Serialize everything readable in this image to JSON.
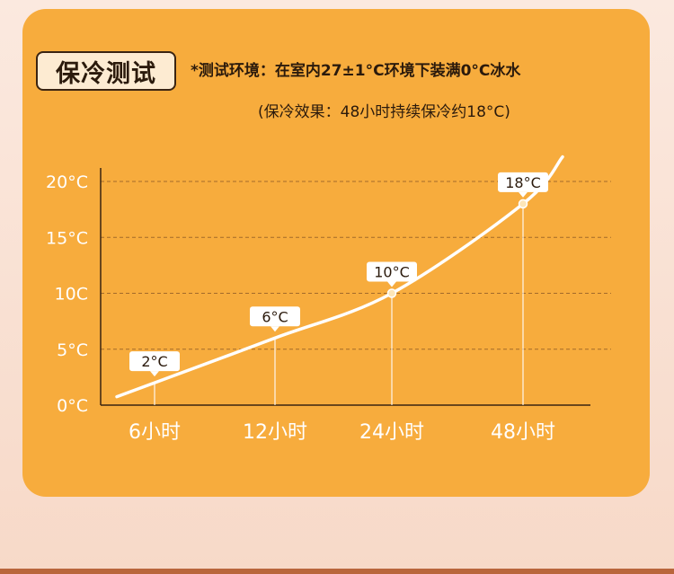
{
  "header": {
    "title": "保冷测试",
    "condition": "*测试环境：在室内27±1°C环境下装满0°C冰水",
    "result": "(保冷效果：48小时持续保冷约18°C)"
  },
  "colors": {
    "card": "#f7ac3d",
    "curve": "#ffffff",
    "grid": "#a36a2a",
    "axis_text": "#ffffff"
  },
  "chart_data": {
    "type": "line",
    "title": "",
    "xlabel": "",
    "ylabel": "",
    "x_tick_labels": [
      "6小时",
      "12小时",
      "24小时",
      "48小时"
    ],
    "y_tick_labels": [
      "0°C",
      "5°C",
      "10C",
      "15°C",
      "20°C"
    ],
    "y_ticks": [
      0,
      5,
      10,
      15,
      20
    ],
    "ylim": [
      0,
      20
    ],
    "grid": "dashed horizontal",
    "series": [
      {
        "points": [
          {
            "x": "6小时",
            "y": 2,
            "label": "2°C"
          },
          {
            "x": "12小时",
            "y": 6,
            "label": "6°C"
          },
          {
            "x": "24小时",
            "y": 10,
            "label": "10°C"
          },
          {
            "x": "48小时",
            "y": 18,
            "label": "18°C"
          }
        ]
      }
    ]
  }
}
